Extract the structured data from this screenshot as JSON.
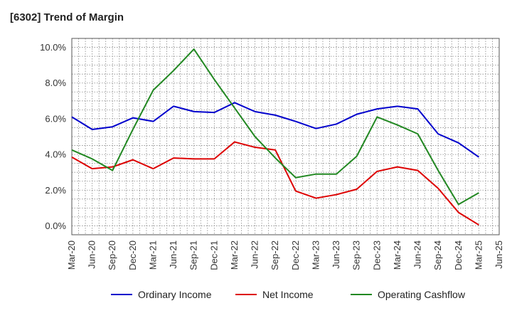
{
  "title": "[6302]  Trend of Margin",
  "chart_data": {
    "type": "line",
    "title": "[6302]  Trend of Margin",
    "xlabel": "",
    "ylabel": "",
    "ylim": [
      -0.5,
      10.5
    ],
    "yticks": [
      0.0,
      2.0,
      4.0,
      6.0,
      8.0,
      10.0
    ],
    "ytick_labels": [
      "0.0%",
      "2.0%",
      "4.0%",
      "6.0%",
      "8.0%",
      "10.0%"
    ],
    "x_labels": [
      "Mar-20",
      "Jun-20",
      "Sep-20",
      "Dec-20",
      "Mar-21",
      "Jun-21",
      "Sep-21",
      "Dec-21",
      "Mar-22",
      "Jun-22",
      "Sep-22",
      "Dec-22",
      "Mar-23",
      "Jun-23",
      "Sep-23",
      "Dec-23",
      "Mar-24",
      "Jun-24",
      "Sep-24",
      "Dec-24",
      "Mar-25",
      "Jun-25"
    ],
    "grid": true,
    "legend_position": "bottom",
    "series": [
      {
        "name": "Ordinary Income",
        "color": "#0000cc",
        "values": [
          6.1,
          5.4,
          5.55,
          6.05,
          5.85,
          6.7,
          6.4,
          6.35,
          6.9,
          6.4,
          6.2,
          5.85,
          5.45,
          5.7,
          6.25,
          6.55,
          6.7,
          6.55,
          5.15,
          4.65,
          3.85,
          null
        ]
      },
      {
        "name": "Net Income",
        "color": "#dd0000",
        "values": [
          3.85,
          3.2,
          3.3,
          3.7,
          3.2,
          3.8,
          3.75,
          3.75,
          4.7,
          4.4,
          4.25,
          1.95,
          1.55,
          1.75,
          2.05,
          3.05,
          3.3,
          3.1,
          2.1,
          0.75,
          0.05,
          null
        ]
      },
      {
        "name": "Operating Cashflow",
        "color": "#228822",
        "values": [
          4.25,
          3.75,
          3.1,
          5.4,
          7.6,
          8.7,
          9.9,
          8.2,
          6.6,
          5.0,
          3.8,
          2.7,
          2.9,
          2.9,
          3.9,
          6.1,
          5.65,
          5.15,
          3.1,
          1.2,
          1.85,
          null
        ]
      }
    ]
  }
}
